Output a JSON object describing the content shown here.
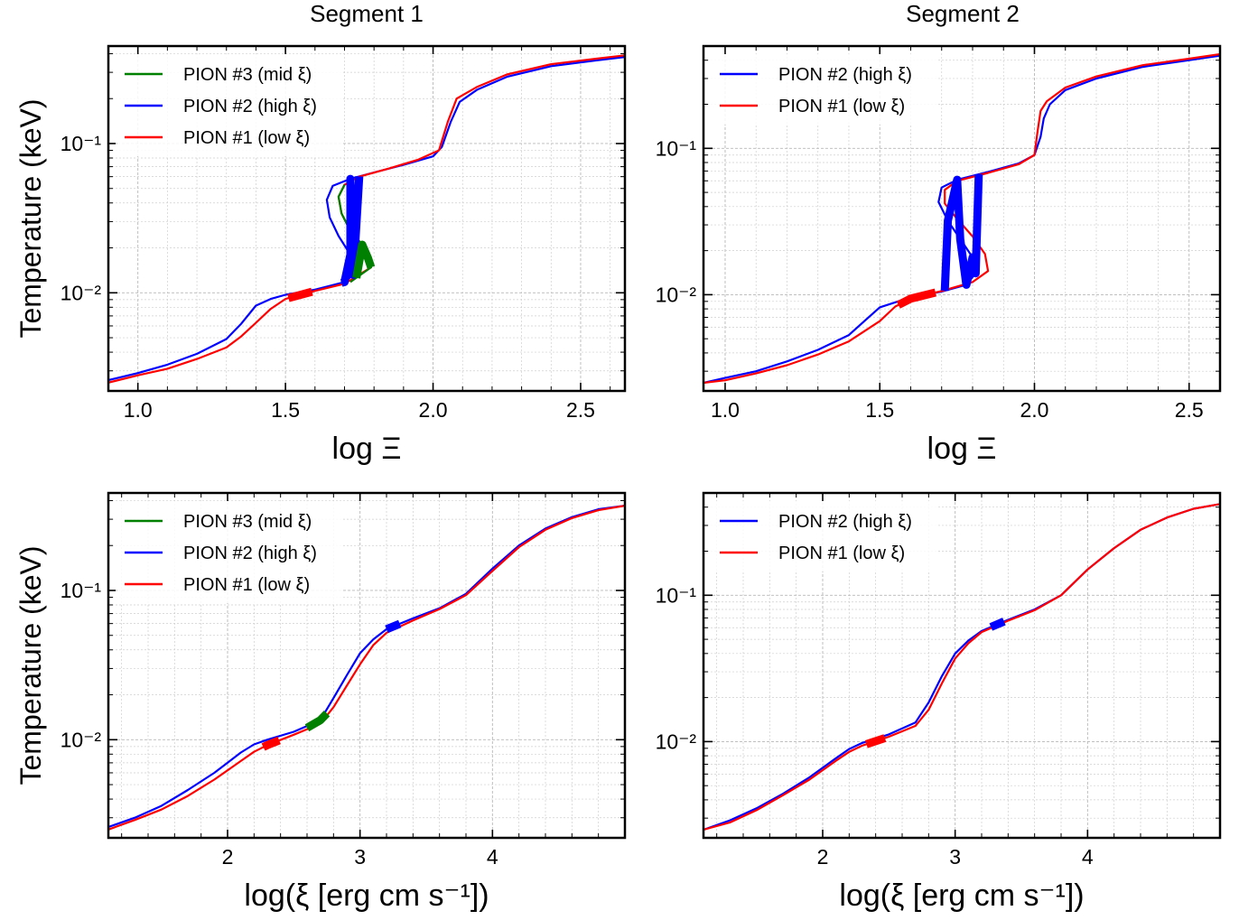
{
  "figure": {
    "column_titles": [
      "Segment 1",
      "Segment 2"
    ],
    "colors": {
      "PION #1 (low ξ)": "#ff0000",
      "PION #2 (high ξ)": "#0000ff",
      "PION #3 (mid ξ)": "#008000"
    }
  },
  "chart_data": [
    {
      "type": "line",
      "title": "Segment 1",
      "xlabel": "log Ξ",
      "ylabel": "Temperature (keV)",
      "xlim": [
        0.9,
        2.65
      ],
      "ylim": [
        0.0022,
        0.45
      ],
      "yscale": "log",
      "xticks": [
        "1.0",
        "1.5",
        "2.0",
        "2.5"
      ],
      "yticks": [
        "10⁻²",
        "10⁻¹"
      ],
      "grid": true,
      "legend_position": "upper-left",
      "legend": [
        "PION #3 (mid ξ)",
        "PION #2 (high ξ)",
        "PION #1 (low ξ)"
      ],
      "series": [
        {
          "name": "PION #2 (high ξ)",
          "color": "#0000ff",
          "x": [
            0.9,
            1.0,
            1.1,
            1.2,
            1.3,
            1.35,
            1.4,
            1.45,
            1.5,
            1.6,
            1.7,
            1.73,
            1.72,
            1.68,
            1.65,
            1.64,
            1.66,
            1.72,
            1.8,
            1.9,
            2.0,
            2.03,
            2.06,
            2.09,
            2.15,
            2.25,
            2.4,
            2.55,
            2.65
          ],
          "y": [
            0.0026,
            0.0029,
            0.0033,
            0.0039,
            0.0049,
            0.0062,
            0.0082,
            0.0091,
            0.0097,
            0.0105,
            0.0118,
            0.0132,
            0.018,
            0.024,
            0.032,
            0.042,
            0.052,
            0.058,
            0.064,
            0.072,
            0.082,
            0.095,
            0.14,
            0.19,
            0.23,
            0.28,
            0.33,
            0.36,
            0.38
          ],
          "highlight_segment": [
            1.69,
            1.75
          ]
        },
        {
          "name": "PION #1 (low ξ)",
          "color": "#ff0000",
          "x": [
            0.9,
            1.0,
            1.1,
            1.2,
            1.3,
            1.35,
            1.4,
            1.45,
            1.5,
            1.6,
            1.7,
            1.79,
            1.78,
            1.76,
            1.72,
            1.69,
            1.68,
            1.7,
            1.75,
            1.85,
            1.95,
            2.02,
            2.05,
            2.08,
            2.15,
            2.25,
            2.4,
            2.55,
            2.65
          ],
          "y": [
            0.0025,
            0.0028,
            0.0031,
            0.0036,
            0.0043,
            0.0051,
            0.0063,
            0.0078,
            0.0091,
            0.0103,
            0.0115,
            0.0148,
            0.017,
            0.021,
            0.026,
            0.034,
            0.044,
            0.053,
            0.06,
            0.068,
            0.078,
            0.09,
            0.14,
            0.2,
            0.24,
            0.29,
            0.34,
            0.37,
            0.39
          ],
          "highlight_segment": [
            1.51,
            1.59
          ]
        },
        {
          "name": "PION #3 (mid ξ)",
          "color": "#008000",
          "x": [
            1.72,
            1.79,
            1.78,
            1.76,
            1.72,
            1.69,
            1.68,
            1.7
          ],
          "y": [
            0.0118,
            0.0148,
            0.017,
            0.021,
            0.026,
            0.034,
            0.044,
            0.053
          ],
          "highlight_segment": [
            1.74,
            1.8
          ]
        }
      ]
    },
    {
      "type": "line",
      "title": "Segment 2",
      "xlabel": "log Ξ",
      "ylabel": "",
      "xlim": [
        0.93,
        2.6
      ],
      "ylim": [
        0.0022,
        0.5
      ],
      "yscale": "log",
      "xticks": [
        "1.0",
        "1.5",
        "2.0",
        "2.5"
      ],
      "yticks": [
        "10⁻²",
        "10⁻¹"
      ],
      "grid": true,
      "legend_position": "upper-left",
      "legend": [
        "PION #2 (high ξ)",
        "PION #1 (low ξ)"
      ],
      "series": [
        {
          "name": "PION #2 (high ξ)",
          "color": "#0000ff",
          "x": [
            0.93,
            1.0,
            1.1,
            1.2,
            1.3,
            1.4,
            1.45,
            1.5,
            1.6,
            1.7,
            1.78,
            1.81,
            1.8,
            1.76,
            1.72,
            1.69,
            1.7,
            1.75,
            1.85,
            1.95,
            2.0,
            2.02,
            2.03,
            2.05,
            2.1,
            2.2,
            2.35,
            2.5,
            2.6
          ],
          "y": [
            0.0025,
            0.0027,
            0.003,
            0.0035,
            0.0042,
            0.0053,
            0.0066,
            0.0082,
            0.0096,
            0.0105,
            0.0117,
            0.014,
            0.018,
            0.024,
            0.032,
            0.043,
            0.054,
            0.061,
            0.069,
            0.079,
            0.09,
            0.12,
            0.16,
            0.2,
            0.25,
            0.3,
            0.36,
            0.4,
            0.43
          ],
          "highlight_segment": [
            1.71,
            1.82
          ]
        },
        {
          "name": "PION #1 (low ξ)",
          "color": "#ff0000",
          "x": [
            0.93,
            1.0,
            1.1,
            1.2,
            1.3,
            1.4,
            1.5,
            1.55,
            1.6,
            1.7,
            1.8,
            1.85,
            1.84,
            1.8,
            1.75,
            1.71,
            1.71,
            1.75,
            1.85,
            1.95,
            2.0,
            2.01,
            2.02,
            2.04,
            2.1,
            2.2,
            2.35,
            2.5,
            2.6
          ],
          "y": [
            0.0025,
            0.0026,
            0.0029,
            0.0033,
            0.0039,
            0.0048,
            0.0066,
            0.0083,
            0.0094,
            0.0106,
            0.0122,
            0.0145,
            0.019,
            0.025,
            0.033,
            0.042,
            0.052,
            0.06,
            0.068,
            0.078,
            0.09,
            0.13,
            0.18,
            0.21,
            0.26,
            0.31,
            0.37,
            0.41,
            0.44
          ],
          "highlight_segment": [
            1.56,
            1.68
          ]
        }
      ]
    },
    {
      "type": "line",
      "title": "",
      "xlabel": "log(ξ [erg cm s⁻¹])",
      "ylabel": "Temperature (keV)",
      "xlim": [
        1.1,
        5.0
      ],
      "ylim": [
        0.0022,
        0.45
      ],
      "yscale": "log",
      "xticks": [
        "2",
        "3",
        "4"
      ],
      "yticks": [
        "10⁻²",
        "10⁻¹"
      ],
      "grid": true,
      "legend_position": "upper-left",
      "legend": [
        "PION #3 (mid ξ)",
        "PION #2 (high ξ)",
        "PION #1 (low ξ)"
      ],
      "series": [
        {
          "name": "PION #2 (high ξ)",
          "color": "#0000ff",
          "x": [
            1.1,
            1.3,
            1.5,
            1.7,
            1.9,
            2.1,
            2.2,
            2.3,
            2.5,
            2.7,
            2.8,
            2.9,
            3.0,
            3.1,
            3.2,
            3.4,
            3.6,
            3.8,
            4.0,
            4.2,
            4.4,
            4.6,
            4.8,
            5.0
          ],
          "y": [
            0.0026,
            0.003,
            0.0036,
            0.0046,
            0.006,
            0.0082,
            0.0093,
            0.01,
            0.0113,
            0.0135,
            0.019,
            0.027,
            0.038,
            0.047,
            0.055,
            0.065,
            0.076,
            0.095,
            0.14,
            0.2,
            0.26,
            0.31,
            0.35,
            0.37
          ],
          "highlight_segment": [
            3.2,
            3.3
          ]
        },
        {
          "name": "PION #1 (low ξ)",
          "color": "#ff0000",
          "x": [
            1.1,
            1.3,
            1.5,
            1.7,
            1.9,
            2.1,
            2.2,
            2.3,
            2.5,
            2.7,
            2.8,
            2.9,
            3.0,
            3.1,
            3.2,
            3.4,
            3.6,
            3.8,
            4.0,
            4.2,
            4.4,
            4.6,
            4.8,
            5.0
          ],
          "y": [
            0.0025,
            0.0029,
            0.0034,
            0.0042,
            0.0054,
            0.0072,
            0.0083,
            0.0092,
            0.0108,
            0.0128,
            0.0165,
            0.023,
            0.032,
            0.043,
            0.052,
            0.063,
            0.075,
            0.093,
            0.135,
            0.195,
            0.255,
            0.305,
            0.345,
            0.37
          ],
          "highlight_segment": [
            2.27,
            2.39
          ]
        },
        {
          "name": "PION #3 (mid ξ)",
          "color": "#008000",
          "x": [
            2.6,
            2.7,
            2.75
          ],
          "y": [
            0.012,
            0.0135,
            0.015
          ],
          "highlight_segment": [
            2.6,
            2.75
          ]
        }
      ]
    },
    {
      "type": "line",
      "title": "",
      "xlabel": "log(ξ [erg cm s⁻¹])",
      "ylabel": "",
      "xlim": [
        1.1,
        5.0
      ],
      "ylim": [
        0.0022,
        0.5
      ],
      "yscale": "log",
      "xticks": [
        "2",
        "3",
        "4"
      ],
      "yticks": [
        "10⁻²",
        "10⁻¹"
      ],
      "grid": true,
      "legend_position": "upper-left",
      "legend": [
        "PION #2 (high ξ)",
        "PION #1 (low ξ)"
      ],
      "series": [
        {
          "name": "PION #2 (high ξ)",
          "color": "#0000ff",
          "x": [
            1.1,
            1.3,
            1.5,
            1.7,
            1.9,
            2.1,
            2.2,
            2.3,
            2.5,
            2.7,
            2.8,
            2.9,
            3.0,
            3.1,
            3.2,
            3.4,
            3.6,
            3.8,
            4.0,
            4.2,
            4.4,
            4.6,
            4.8,
            5.0
          ],
          "y": [
            0.0025,
            0.0029,
            0.0035,
            0.0044,
            0.0057,
            0.0077,
            0.0089,
            0.0098,
            0.0112,
            0.0135,
            0.0185,
            0.028,
            0.04,
            0.049,
            0.057,
            0.068,
            0.08,
            0.1,
            0.15,
            0.21,
            0.28,
            0.34,
            0.39,
            0.42
          ],
          "highlight_segment": [
            3.27,
            3.37
          ]
        },
        {
          "name": "PION #1 (low ξ)",
          "color": "#ff0000",
          "x": [
            1.1,
            1.3,
            1.5,
            1.7,
            1.9,
            2.1,
            2.2,
            2.3,
            2.5,
            2.7,
            2.8,
            2.9,
            3.0,
            3.1,
            3.2,
            3.4,
            3.6,
            3.8,
            4.0,
            4.2,
            4.4,
            4.6,
            4.8,
            5.0
          ],
          "y": [
            0.0025,
            0.0028,
            0.0034,
            0.0043,
            0.0055,
            0.0074,
            0.0085,
            0.0094,
            0.0108,
            0.0128,
            0.0165,
            0.025,
            0.037,
            0.047,
            0.056,
            0.067,
            0.079,
            0.1,
            0.15,
            0.21,
            0.28,
            0.34,
            0.39,
            0.42
          ],
          "highlight_segment": [
            2.33,
            2.47
          ]
        }
      ]
    }
  ]
}
